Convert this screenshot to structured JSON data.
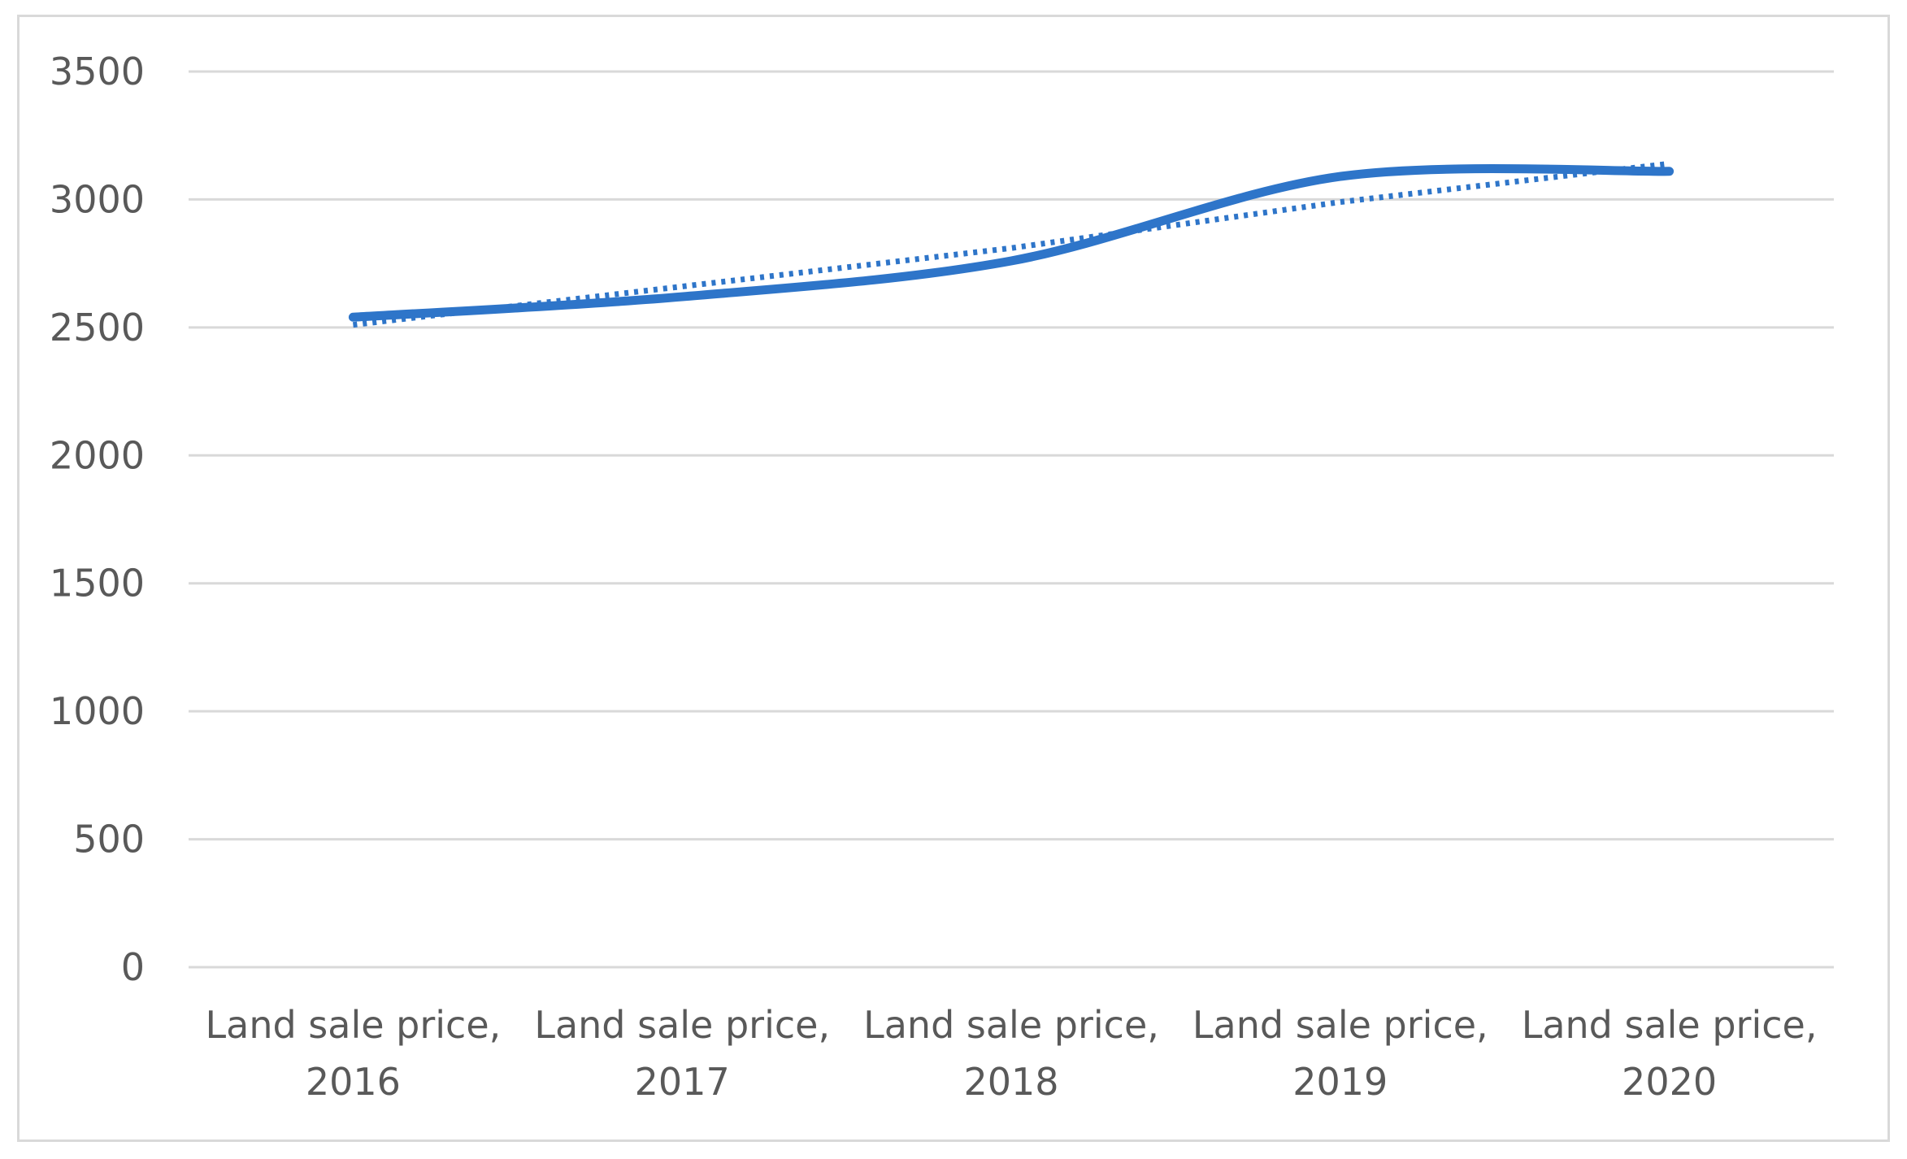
{
  "chart_data": {
    "type": "line",
    "title": "",
    "xlabel": "",
    "ylabel": "",
    "categories": [
      [
        "Land sale price,",
        "2016"
      ],
      [
        "Land sale price,",
        "2017"
      ],
      [
        "Land sale price,",
        "2018"
      ],
      [
        "Land sale price,",
        "2019"
      ],
      [
        "Land sale price,",
        "2020"
      ]
    ],
    "series": [
      {
        "values": [
          2540,
          2620,
          2760,
          3090,
          3110
        ],
        "style": "solid",
        "color": "#2e75c9"
      },
      {
        "kind": "trendline",
        "values": [
          2510,
          2660,
          2810,
          2990,
          3140
        ],
        "style": "dotted",
        "color": "#2e75c9"
      }
    ],
    "ylim": [
      0,
      3500
    ],
    "yticks": [
      0,
      500,
      1000,
      1500,
      2000,
      2500,
      3000,
      3500
    ],
    "grid": true,
    "legend": "none"
  }
}
